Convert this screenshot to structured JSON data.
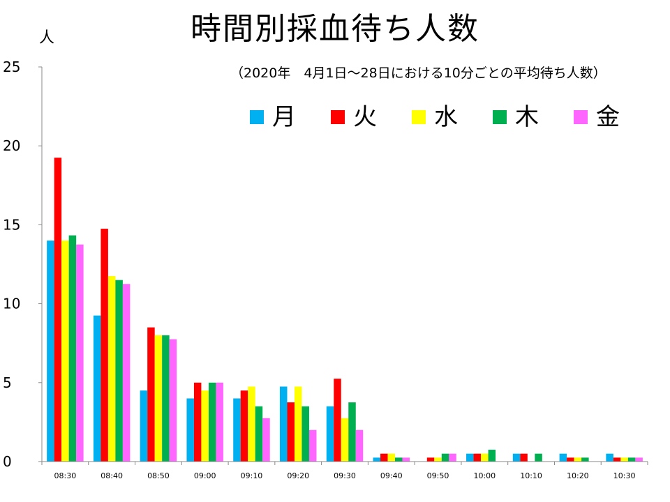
{
  "title": "時間別採血待ち人数",
  "subtitle": "（2020年　4月1日～28日における10分ごとの平均待ち人数）",
  "ylabel": "人",
  "colors": {
    "月": "#00b0f0",
    "火": "#ff0000",
    "水": "#ffff00",
    "木": "#00b050",
    "金": "#ff66ff"
  },
  "chart_data": {
    "type": "bar",
    "title": "時間別採血待ち人数",
    "subtitle": "（2020年　4月1日～28日における10分ごとの平均待ち人数）",
    "ylabel": "人",
    "xlabel": "",
    "ylim": [
      0,
      25
    ],
    "yticks": [
      0,
      5,
      10,
      15,
      20,
      25
    ],
    "legend_position": "top-right",
    "grid": false,
    "categories": [
      "08:30",
      "08:40",
      "08:50",
      "09:00",
      "09:10",
      "09:20",
      "09:30",
      "09:40",
      "09:50",
      "10:00",
      "10:10",
      "10:20",
      "10:30"
    ],
    "series": [
      {
        "name": "月",
        "color": "#00b0f0",
        "values": [
          14.0,
          9.25,
          4.5,
          4.0,
          4.0,
          4.75,
          3.5,
          0.25,
          0,
          0.5,
          0.5,
          0.5,
          0.5
        ]
      },
      {
        "name": "火",
        "color": "#ff0000",
        "values": [
          19.25,
          14.75,
          8.5,
          5.0,
          4.5,
          3.75,
          5.25,
          0.5,
          0.25,
          0.5,
          0.5,
          0.25,
          0.25
        ]
      },
      {
        "name": "水",
        "color": "#ffff00",
        "values": [
          14.0,
          11.75,
          8.0,
          4.5,
          4.75,
          4.75,
          2.75,
          0.5,
          0.25,
          0.5,
          0,
          0.25,
          0.25
        ]
      },
      {
        "name": "木",
        "color": "#00b050",
        "values": [
          14.33,
          11.5,
          8.0,
          5.0,
          3.5,
          3.5,
          3.75,
          0.25,
          0.5,
          0.75,
          0.5,
          0.25,
          0.25
        ]
      },
      {
        "name": "金",
        "color": "#ff66ff",
        "values": [
          13.75,
          11.25,
          7.75,
          5.0,
          2.75,
          2.0,
          2.0,
          0.25,
          0.5,
          0,
          0,
          0,
          0.25
        ]
      }
    ]
  }
}
